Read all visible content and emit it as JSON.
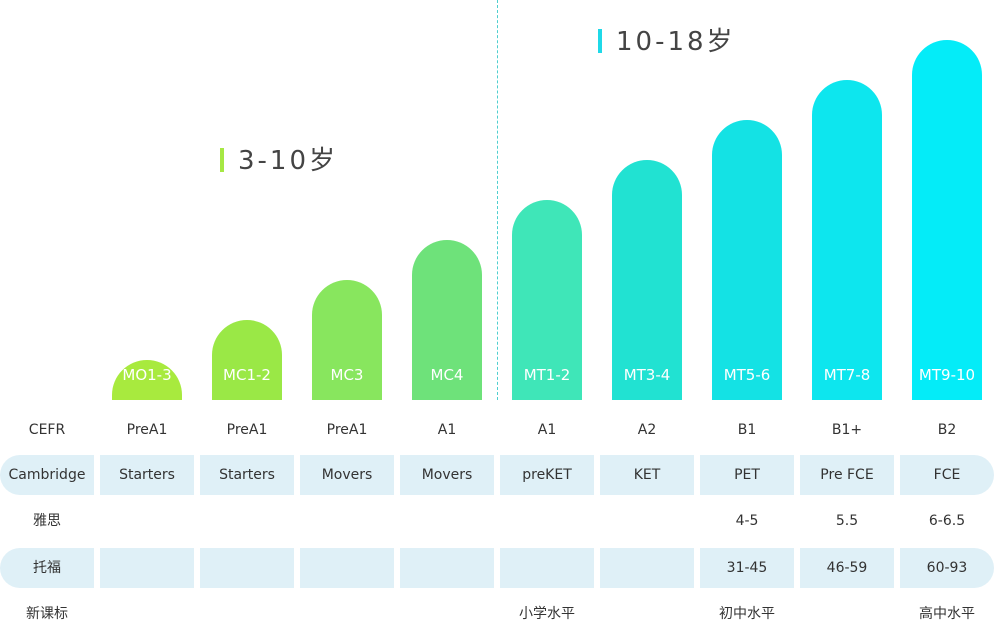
{
  "age_groups": {
    "young": {
      "label": "3-10岁",
      "color": "#a6e844"
    },
    "teen": {
      "label": "10-18岁",
      "color": "#1fd9e8"
    }
  },
  "chart_data": {
    "type": "bar",
    "categories": [
      "MO1-3",
      "MC1-2",
      "MC3",
      "MC4",
      "MT1-2",
      "MT3-4",
      "MT5-6",
      "MT7-8",
      "MT9-10"
    ],
    "values": [
      1,
      2,
      3,
      4,
      5,
      6,
      7,
      8,
      9
    ],
    "ylim": [
      0,
      10
    ],
    "colors": [
      "#a8ea3e",
      "#9ae846",
      "#88e65e",
      "#6ee27a",
      "#3fe6b8",
      "#21e2d2",
      "#14e2e4",
      "#0de6ee",
      "#04ecf8"
    ],
    "title": "",
    "xlabel": "",
    "ylabel": ""
  },
  "table": {
    "rows": [
      {
        "header": "CEFR",
        "shaded": false,
        "cells": [
          "PreA1",
          "PreA1",
          "PreA1",
          "A1",
          "A1",
          "A2",
          "B1",
          "B1+",
          "B2"
        ]
      },
      {
        "header": "Cambridge",
        "shaded": true,
        "cells": [
          "Starters",
          "Starters",
          "Movers",
          "Movers",
          "preKET",
          "KET",
          "PET",
          "Pre FCE",
          "FCE"
        ]
      },
      {
        "header": "雅思",
        "shaded": false,
        "cells": [
          "",
          "",
          "",
          "",
          "",
          "",
          "4-5",
          "5.5",
          "6-6.5"
        ]
      },
      {
        "header": "托福",
        "shaded": true,
        "cells": [
          "",
          "",
          "",
          "",
          "",
          "",
          "31-45",
          "46-59",
          "60-93"
        ]
      },
      {
        "header": "新课标",
        "shaded": false,
        "cells": [
          "",
          "",
          "",
          "",
          "小学水平",
          "",
          "初中水平",
          "",
          "高中水平"
        ]
      }
    ]
  }
}
